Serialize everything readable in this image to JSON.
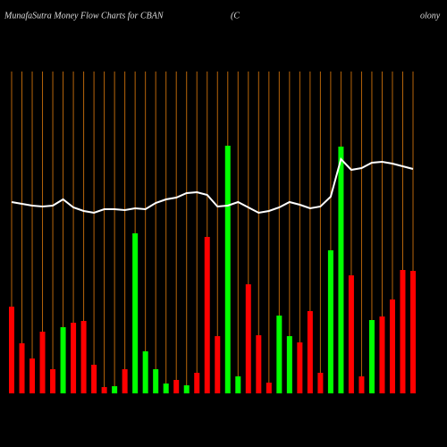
{
  "chart_data": {
    "type": "bar",
    "title_parts": [
      "MunafaSutra  Money Flow  Charts for CBAN",
      "(C",
      "olony"
    ],
    "categories": [
      null,
      null,
      null,
      null,
      null,
      null,
      null,
      null,
      null,
      null,
      null,
      null,
      null,
      null,
      null,
      null,
      null,
      null,
      null,
      null,
      null,
      null,
      null,
      null,
      null,
      null,
      null,
      null,
      null,
      null,
      null,
      null,
      null,
      null,
      null,
      null,
      null,
      null,
      null,
      null
    ],
    "values": [
      97,
      56,
      39,
      69,
      27,
      74,
      79,
      81,
      32,
      7,
      8,
      27,
      179,
      47,
      27,
      11,
      15,
      9,
      23,
      175,
      64,
      277,
      19,
      122,
      65,
      12,
      87,
      64,
      57,
      92,
      23,
      160,
      276,
      132,
      19,
      82,
      86,
      105,
      138,
      137
    ],
    "colors": [
      "#ff0000",
      "#ff0000",
      "#ff0000",
      "#ff0000",
      "#ff0000",
      "#00ff00",
      "#ff0000",
      "#ff0000",
      "#ff0000",
      "#ff0000",
      "#00ff00",
      "#ff0000",
      "#00ff00",
      "#00ff00",
      "#00ff00",
      "#00ff00",
      "#ff0000",
      "#00ff00",
      "#ff0000",
      "#ff0000",
      "#ff0000",
      "#00ff00",
      "#00ff00",
      "#ff0000",
      "#ff0000",
      "#ff0000",
      "#00ff00",
      "#00ff00",
      "#ff0000",
      "#ff0000",
      "#ff0000",
      "#00ff00",
      "#00ff00",
      "#ff0000",
      "#ff0000",
      "#00ff00",
      "#ff0000",
      "#ff0000",
      "#ff0000",
      "#ff0000"
    ],
    "line": {
      "color": "#ffffff",
      "values": [
        214,
        212,
        210,
        209,
        210,
        217,
        208,
        204,
        202,
        206,
        206,
        205,
        207,
        206,
        213,
        217,
        219,
        224,
        225,
        222,
        209,
        210,
        214,
        208,
        202,
        204,
        208,
        214,
        211,
        207,
        209,
        220,
        262,
        250,
        252,
        258,
        259,
        257,
        254,
        251
      ]
    },
    "ylim": [
      0,
      360
    ],
    "grid": true,
    "grid_color": "#b8650a"
  }
}
